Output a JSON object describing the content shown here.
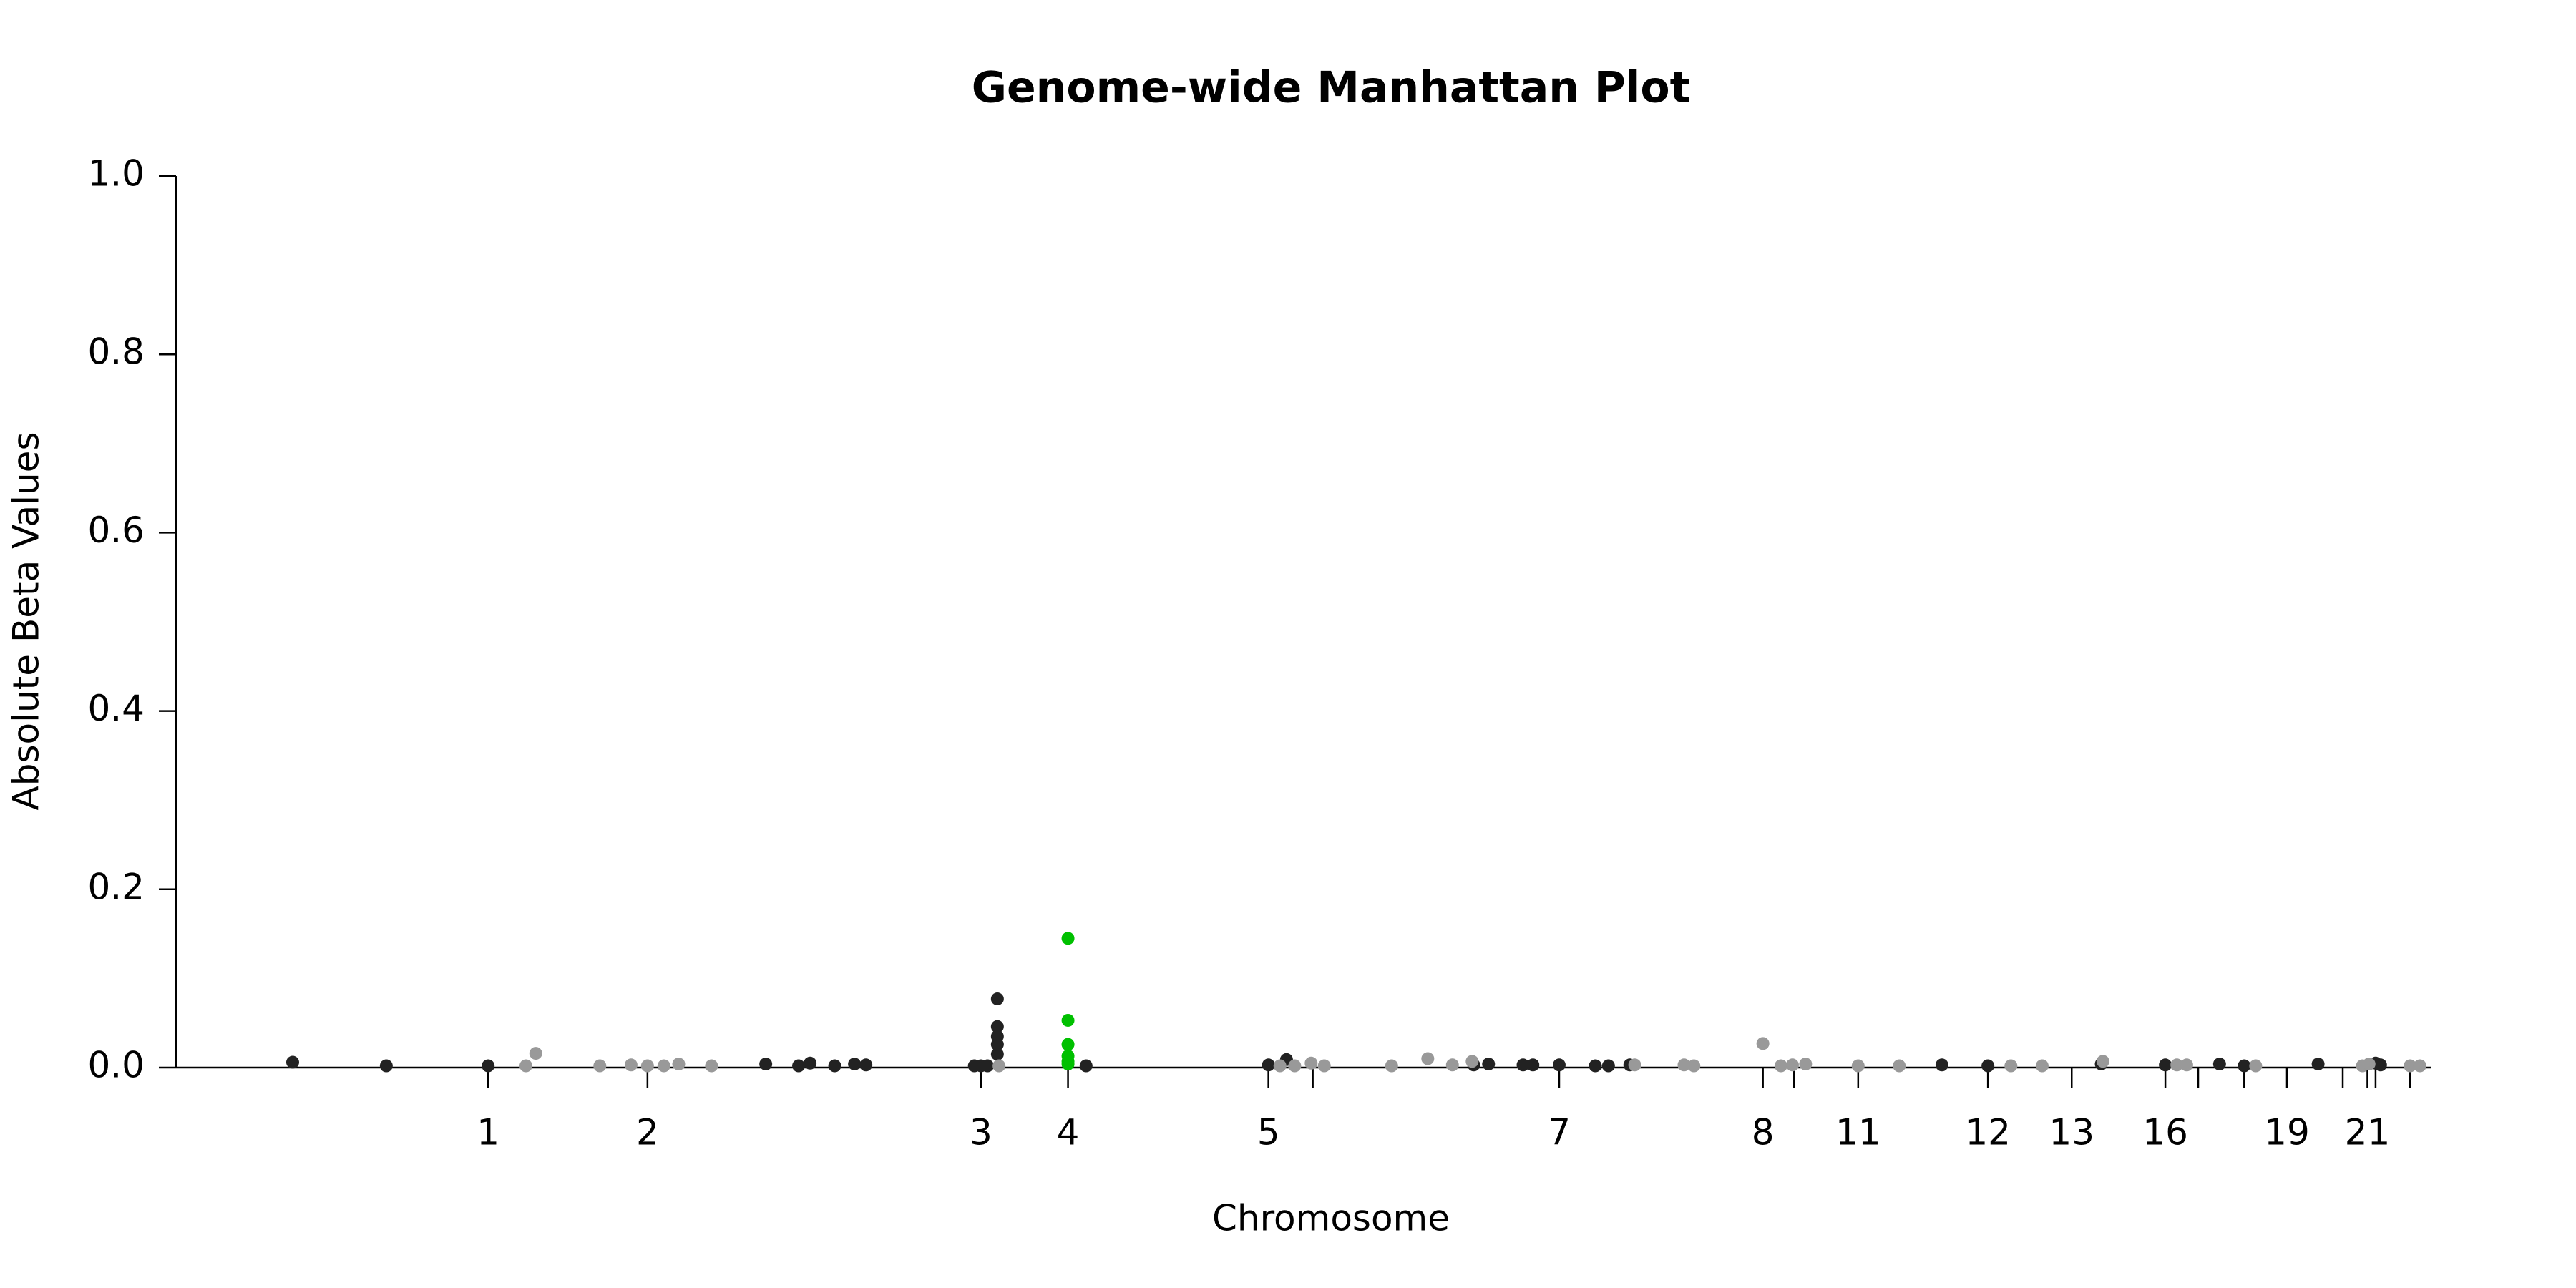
{
  "chart_data": {
    "type": "scatter",
    "title": "Genome-wide Manhattan Plot",
    "x_label": "Chromosome",
    "y_label": "Absolute Beta Values",
    "xlim": [
      0,
      1373
    ],
    "ylim": [
      0,
      1
    ],
    "yticks": [
      {
        "value": 0,
        "label": "0.0"
      },
      {
        "value": 0.2,
        "label": "0.2"
      },
      {
        "value": 0.4,
        "label": "0.4"
      },
      {
        "value": 0.6,
        "label": "0.6"
      },
      {
        "value": 0.8,
        "label": "0.8"
      },
      {
        "value": 1,
        "label": "1.0"
      }
    ],
    "xticks": [
      {
        "value": 190,
        "label": "1"
      },
      {
        "value": 287,
        "label": "2"
      },
      {
        "value": 490,
        "label": "3"
      },
      {
        "value": 543,
        "label": "4"
      },
      {
        "value": 665,
        "label": "5"
      },
      {
        "value": 692,
        "label": null
      },
      {
        "value": 842,
        "label": "7"
      },
      {
        "value": 966,
        "label": "8"
      },
      {
        "value": 985,
        "label": null
      },
      {
        "value": 1024,
        "label": "11"
      },
      {
        "value": 1103,
        "label": "12"
      },
      {
        "value": 1154,
        "label": "13"
      },
      {
        "value": 1211,
        "label": "16"
      },
      {
        "value": 1231,
        "label": null
      },
      {
        "value": 1259,
        "label": null
      },
      {
        "value": 1285,
        "label": "19"
      },
      {
        "value": 1319,
        "label": null
      },
      {
        "value": 1334,
        "label": "21"
      },
      {
        "value": 1339,
        "label": null
      },
      {
        "value": 1360,
        "label": null
      }
    ],
    "series": [
      {
        "color": "#222222",
        "x": [
          71,
          128,
          190,
          359,
          379,
          386,
          401,
          413,
          420,
          486,
          490,
          494,
          500,
          500,
          500,
          500,
          500,
          554,
          665,
          676,
          790,
          799,
          820,
          826,
          842,
          864,
          872,
          885,
          1075,
          1103,
          1172,
          1211,
          1244,
          1259,
          1304,
          1339,
          1342
        ],
        "values": [
          0.006,
          0.002,
          0.002,
          0.004,
          0.002,
          0.005,
          0.002,
          0.004,
          0.003,
          0.002,
          0.002,
          0.002,
          0.077,
          0.046,
          0.035,
          0.026,
          0.015,
          0.002,
          0.003,
          0.009,
          0.003,
          0.004,
          0.003,
          0.003,
          0.003,
          0.002,
          0.002,
          0.003,
          0.003,
          0.002,
          0.004,
          0.003,
          0.004,
          0.002,
          0.004,
          0.005,
          0.003
        ]
      },
      {
        "color": "#999999",
        "x": [
          213,
          219,
          258,
          277,
          287,
          297,
          306,
          326,
          501,
          672,
          681,
          691,
          699,
          740,
          762,
          777,
          789,
          888,
          918,
          924,
          966,
          977,
          984,
          992,
          1024,
          1049,
          1117,
          1136,
          1173,
          1218,
          1224,
          1266,
          1331,
          1335,
          1360,
          1366
        ],
        "values": [
          0.002,
          0.016,
          0.002,
          0.003,
          0.002,
          0.002,
          0.004,
          0.002,
          0.002,
          0.002,
          0.002,
          0.005,
          0.002,
          0.002,
          0.01,
          0.003,
          0.007,
          0.003,
          0.003,
          0.002,
          0.027,
          0.002,
          0.003,
          0.004,
          0.002,
          0.002,
          0.002,
          0.002,
          0.007,
          0.003,
          0.003,
          0.002,
          0.002,
          0.004,
          0.002,
          0.002
        ]
      },
      {
        "color": "#00c000",
        "x": [
          543,
          543,
          543,
          543,
          543,
          543
        ],
        "values": [
          0.145,
          0.053,
          0.026,
          0.013,
          0.007,
          0.004
        ]
      }
    ]
  }
}
